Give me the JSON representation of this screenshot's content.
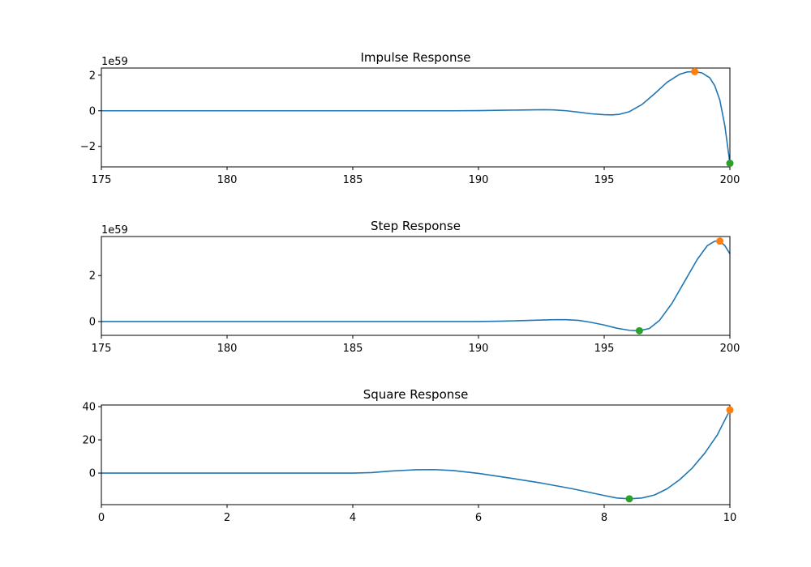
{
  "chart_data": [
    {
      "type": "line",
      "title": "Impulse Response",
      "offset_text": "1e59",
      "xlim": [
        175,
        200
      ],
      "ylim": [
        -3.15,
        2.4
      ],
      "x_ticks": [
        175,
        180,
        185,
        190,
        195,
        200
      ],
      "y_ticks": [
        -2,
        0,
        2
      ],
      "y_tick_labels": [
        "−2",
        "0",
        "2"
      ],
      "grid": false,
      "series": [
        {
          "color": "#1f77b4",
          "x": [
            175,
            180,
            185,
            189,
            190,
            191,
            192,
            192.6,
            193,
            193.5,
            194,
            194.5,
            195,
            195.3,
            195.6,
            196,
            196.5,
            197,
            197.5,
            198,
            198.3,
            198.6,
            198.9,
            199.2,
            199.4,
            199.6,
            199.8,
            200
          ],
          "y": [
            0,
            0,
            0,
            0,
            0.01,
            0.03,
            0.05,
            0.06,
            0.05,
            0.0,
            -0.08,
            -0.17,
            -0.22,
            -0.23,
            -0.2,
            -0.05,
            0.35,
            0.95,
            1.6,
            2.05,
            2.18,
            2.2,
            2.12,
            1.85,
            1.4,
            0.6,
            -0.85,
            -2.95
          ]
        }
      ],
      "max_marker": {
        "x": 198.6,
        "y": 2.2,
        "color": "#ff7f0e"
      },
      "min_marker": {
        "x": 200,
        "y": -2.95,
        "color": "#2ca02c"
      }
    },
    {
      "type": "line",
      "title": "Step Response",
      "offset_text": "1e59",
      "xlim": [
        175,
        200
      ],
      "ylim": [
        -0.6,
        3.7
      ],
      "x_ticks": [
        175,
        180,
        185,
        190,
        195,
        200
      ],
      "y_ticks": [
        0,
        2
      ],
      "y_tick_labels": [
        "0",
        "2"
      ],
      "grid": false,
      "series": [
        {
          "color": "#1f77b4",
          "x": [
            175,
            180,
            185,
            190,
            191,
            192,
            193,
            193.5,
            194,
            194.5,
            195,
            195.5,
            196,
            196.4,
            196.8,
            197.2,
            197.7,
            198.2,
            198.7,
            199.1,
            199.4,
            199.6,
            199.8,
            200
          ],
          "y": [
            0,
            0,
            0,
            0,
            0.02,
            0.05,
            0.08,
            0.08,
            0.05,
            -0.04,
            -0.15,
            -0.29,
            -0.38,
            -0.4,
            -0.3,
            0.05,
            0.8,
            1.75,
            2.7,
            3.3,
            3.5,
            3.5,
            3.3,
            2.95
          ]
        }
      ],
      "max_marker": {
        "x": 199.6,
        "y": 3.5,
        "color": "#ff7f0e"
      },
      "min_marker": {
        "x": 196.4,
        "y": -0.4,
        "color": "#2ca02c"
      }
    },
    {
      "type": "line",
      "title": "Square Response",
      "offset_text": "",
      "xlim": [
        0,
        10
      ],
      "ylim": [
        -19,
        41
      ],
      "x_ticks": [
        0,
        2,
        4,
        6,
        8,
        10
      ],
      "y_ticks": [
        0,
        20,
        40
      ],
      "y_tick_labels": [
        "0",
        "20",
        "40"
      ],
      "grid": false,
      "series": [
        {
          "color": "#1f77b4",
          "x": [
            0,
            2,
            4,
            4.3,
            4.6,
            5,
            5.3,
            5.6,
            6,
            6.5,
            7,
            7.5,
            8,
            8.2,
            8.4,
            8.6,
            8.8,
            9,
            9.2,
            9.4,
            9.6,
            9.8,
            10
          ],
          "y": [
            0,
            0,
            0,
            0.3,
            1.2,
            2.0,
            2.1,
            1.5,
            -0.2,
            -3.0,
            -6.0,
            -9.5,
            -13.5,
            -15.0,
            -15.5,
            -15.0,
            -13.2,
            -9.5,
            -4.0,
            3.0,
            12.0,
            23.0,
            38.0
          ]
        }
      ],
      "max_marker": {
        "x": 10,
        "y": 38.0,
        "color": "#ff7f0e"
      },
      "min_marker": {
        "x": 8.4,
        "y": -15.5,
        "color": "#2ca02c"
      }
    }
  ]
}
